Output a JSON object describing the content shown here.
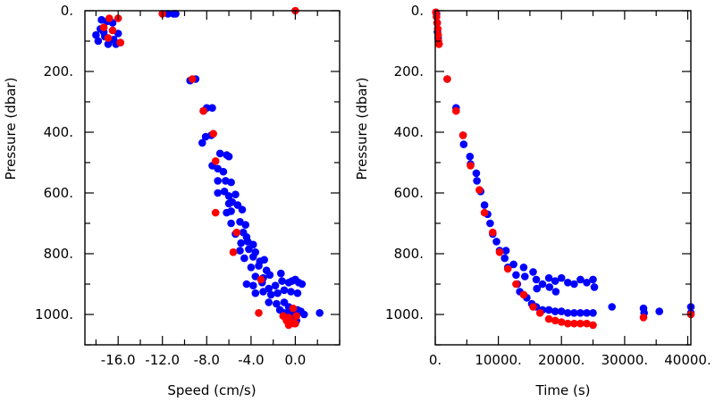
{
  "chart_data": [
    {
      "type": "scatter",
      "xlabel": "Speed (cm/s)",
      "ylabel": "Pressure (dbar)",
      "xlim": [
        -19,
        4
      ],
      "ylim": [
        1100,
        0
      ],
      "y_inverted": true,
      "xticks": [
        -16,
        -12,
        -8,
        -4,
        0
      ],
      "xtick_labels": [
        "-16.0",
        "-12.0",
        "-8.0",
        "-4.0",
        "0.0"
      ],
      "yticks": [
        0,
        200,
        400,
        600,
        800,
        1000
      ],
      "ytick_labels": [
        "0.",
        "200.",
        "400.",
        "600.",
        "800.",
        "1000."
      ],
      "series": [
        {
          "color": "#0000ff",
          "points": [
            [
              -17.5,
              30
            ],
            [
              -17.0,
              35
            ],
            [
              -16.5,
              40
            ],
            [
              -18.0,
              80
            ],
            [
              -17.2,
              85
            ],
            [
              -16.4,
              95
            ],
            [
              -17.8,
              100
            ],
            [
              -17.6,
              60
            ],
            [
              -16.9,
              110
            ],
            [
              -16.2,
              110
            ],
            [
              -17.3,
              70
            ],
            [
              -16.0,
              75
            ],
            [
              -15.8,
              105
            ],
            [
              -11.5,
              10
            ],
            [
              -11.0,
              10
            ],
            [
              -10.8,
              10
            ],
            [
              -9.5,
              230
            ],
            [
              -9.0,
              225
            ],
            [
              -8.3,
              330
            ],
            [
              -8.0,
              320
            ],
            [
              -7.5,
              320
            ],
            [
              -8.4,
              435
            ],
            [
              -8.1,
              415
            ],
            [
              -7.6,
              410
            ],
            [
              -6.8,
              470
            ],
            [
              -6.2,
              475
            ],
            [
              -6.0,
              480
            ],
            [
              -7.5,
              510
            ],
            [
              -7.0,
              520
            ],
            [
              -6.5,
              530
            ],
            [
              -7.0,
              560
            ],
            [
              -6.3,
              560
            ],
            [
              -5.8,
              565
            ],
            [
              -7.0,
              600
            ],
            [
              -6.4,
              595
            ],
            [
              -6.0,
              610
            ],
            [
              -5.4,
              605
            ],
            [
              -6.0,
              635
            ],
            [
              -5.7,
              630
            ],
            [
              -5.2,
              640
            ],
            [
              -6.2,
              665
            ],
            [
              -5.8,
              660
            ],
            [
              -4.8,
              655
            ],
            [
              -5.8,
              700
            ],
            [
              -5.0,
              695
            ],
            [
              -4.5,
              705
            ],
            [
              -5.4,
              735
            ],
            [
              -4.7,
              730
            ],
            [
              -4.4,
              745
            ],
            [
              -4.9,
              765
            ],
            [
              -4.3,
              760
            ],
            [
              -3.8,
              770
            ],
            [
              -5.0,
              790
            ],
            [
              -4.2,
              785
            ],
            [
              -3.6,
              795
            ],
            [
              -4.6,
              815
            ],
            [
              -3.8,
              810
            ],
            [
              -3.2,
              825
            ],
            [
              -2.8,
              820
            ],
            [
              -4.0,
              845
            ],
            [
              -3.3,
              840
            ],
            [
              -2.6,
              855
            ],
            [
              -3.6,
              875
            ],
            [
              -2.9,
              880
            ],
            [
              -2.3,
              870
            ],
            [
              -1.3,
              865
            ],
            [
              -4.4,
              900
            ],
            [
              -3.8,
              905
            ],
            [
              -3.0,
              895
            ],
            [
              -2.4,
              915
            ],
            [
              -1.8,
              905
            ],
            [
              -1.2,
              890
            ],
            [
              -0.6,
              895
            ],
            [
              -0.3,
              890
            ],
            [
              0.0,
              885
            ],
            [
              0.3,
              895
            ],
            [
              0.6,
              900
            ],
            [
              -3.6,
              930
            ],
            [
              -2.9,
              925
            ],
            [
              -2.2,
              935
            ],
            [
              -1.6,
              930
            ],
            [
              -1.0,
              920
            ],
            [
              -0.4,
              925
            ],
            [
              0.2,
              930
            ],
            [
              -2.4,
              960
            ],
            [
              -1.7,
              965
            ],
            [
              -1.0,
              960
            ],
            [
              -0.6,
              975
            ],
            [
              -1.4,
              985
            ],
            [
              -1.0,
              995
            ],
            [
              -0.5,
              985
            ],
            [
              -0.2,
              995
            ],
            [
              0.2,
              985
            ],
            [
              0.5,
              990
            ],
            [
              0.8,
              1000
            ],
            [
              -0.7,
              1005
            ],
            [
              -0.2,
              1010
            ],
            [
              2.2,
              995
            ],
            [
              0.1,
              1020
            ],
            [
              -0.5,
              1025
            ]
          ]
        },
        {
          "color": "#ff0000",
          "points": [
            [
              -16.8,
              25
            ],
            [
              -16.0,
              25
            ],
            [
              -17.3,
              55
            ],
            [
              -16.5,
              65
            ],
            [
              -16.9,
              90
            ],
            [
              -15.8,
              105
            ],
            [
              -12.0,
              10
            ],
            [
              0.0,
              0
            ],
            [
              -9.3,
              225
            ],
            [
              -8.3,
              330
            ],
            [
              -7.4,
              405
            ],
            [
              -7.2,
              495
            ],
            [
              -7.2,
              665
            ],
            [
              -5.3,
              730
            ],
            [
              -5.6,
              795
            ],
            [
              -3.1,
              885
            ],
            [
              -3.3,
              995
            ],
            [
              -0.2,
              980
            ],
            [
              -1.1,
              1005
            ],
            [
              -0.6,
              1010
            ],
            [
              0.1,
              1005
            ],
            [
              -0.8,
              1020
            ],
            [
              -0.3,
              1025
            ],
            [
              0.0,
              1030
            ],
            [
              -0.6,
              1035
            ],
            [
              -0.1,
              1030
            ]
          ]
        }
      ]
    },
    {
      "type": "scatter",
      "xlabel": "Time (s)",
      "ylabel": "Pressure (dbar)",
      "xlim": [
        0,
        40500
      ],
      "ylim": [
        1100,
        0
      ],
      "y_inverted": true,
      "xticks": [
        0,
        10000,
        20000,
        30000,
        40000
      ],
      "xtick_labels": [
        "0.",
        "10000.",
        "20000.",
        "30000.",
        "40000."
      ],
      "yticks": [
        0,
        200,
        400,
        600,
        800,
        1000
      ],
      "ytick_labels": [
        "0.",
        "200.",
        "400.",
        "600.",
        "800.",
        "1000."
      ],
      "series": [
        {
          "color": "#0000ff",
          "points": [
            [
              200,
              10
            ],
            [
              300,
              40
            ],
            [
              350,
              70
            ],
            [
              450,
              90
            ],
            [
              1900,
              225
            ],
            [
              3300,
              320
            ],
            [
              4400,
              410
            ],
            [
              4500,
              440
            ],
            [
              5500,
              480
            ],
            [
              5600,
              505
            ],
            [
              6500,
              535
            ],
            [
              6600,
              560
            ],
            [
              7200,
              595
            ],
            [
              7800,
              640
            ],
            [
              8300,
              670
            ],
            [
              8700,
              700
            ],
            [
              9100,
              735
            ],
            [
              9700,
              760
            ],
            [
              10200,
              790
            ],
            [
              11000,
              815
            ],
            [
              11500,
              845
            ],
            [
              11200,
              790
            ],
            [
              12400,
              835
            ],
            [
              12800,
              870
            ],
            [
              13000,
              900
            ],
            [
              14000,
              845
            ],
            [
              14200,
              875
            ],
            [
              15500,
              860
            ],
            [
              16000,
              885
            ],
            [
              16100,
              915
            ],
            [
              17000,
              900
            ],
            [
              18000,
              880
            ],
            [
              18100,
              910
            ],
            [
              19000,
              890
            ],
            [
              19100,
              925
            ],
            [
              20000,
              880
            ],
            [
              21000,
              895
            ],
            [
              22000,
              900
            ],
            [
              23000,
              885
            ],
            [
              24000,
              895
            ],
            [
              25000,
              885
            ],
            [
              25200,
              910
            ],
            [
              13400,
              925
            ],
            [
              14500,
              945
            ],
            [
              15300,
              965
            ],
            [
              16000,
              975
            ],
            [
              17000,
              985
            ],
            [
              18000,
              985
            ],
            [
              19000,
              990
            ],
            [
              20000,
              990
            ],
            [
              21000,
              995
            ],
            [
              22000,
              995
            ],
            [
              23000,
              995
            ],
            [
              24000,
              995
            ],
            [
              25000,
              995
            ],
            [
              28000,
              975
            ],
            [
              33000,
              980
            ],
            [
              33100,
              995
            ],
            [
              35500,
              990
            ],
            [
              40500,
              975
            ],
            [
              40500,
              995
            ]
          ]
        },
        {
          "color": "#ff0000",
          "points": [
            [
              100,
              5
            ],
            [
              200,
              20
            ],
            [
              300,
              40
            ],
            [
              400,
              60
            ],
            [
              450,
              80
            ],
            [
              500,
              100
            ],
            [
              600,
              110
            ],
            [
              1900,
              225
            ],
            [
              3300,
              330
            ],
            [
              4400,
              410
            ],
            [
              5600,
              510
            ],
            [
              7000,
              590
            ],
            [
              7800,
              665
            ],
            [
              9100,
              730
            ],
            [
              10200,
              795
            ],
            [
              11500,
              850
            ],
            [
              12800,
              900
            ],
            [
              14000,
              935
            ],
            [
              15500,
              975
            ],
            [
              16600,
              995
            ],
            [
              18000,
              1015
            ],
            [
              19000,
              1020
            ],
            [
              20000,
              1025
            ],
            [
              21000,
              1030
            ],
            [
              22000,
              1030
            ],
            [
              23000,
              1030
            ],
            [
              24000,
              1030
            ],
            [
              25000,
              1035
            ],
            [
              33000,
              1010
            ],
            [
              40500,
              1000
            ]
          ]
        }
      ]
    }
  ]
}
